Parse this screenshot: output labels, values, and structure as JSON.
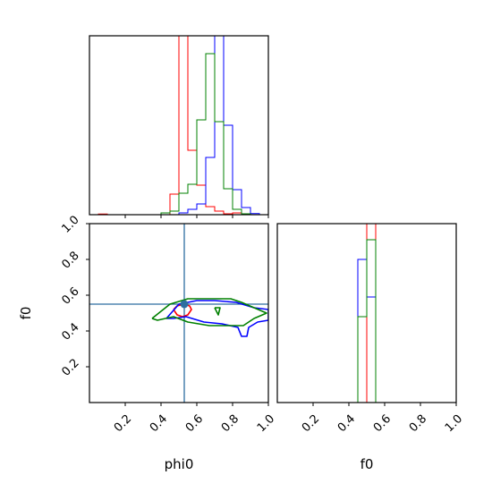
{
  "chart_data": [
    {
      "type": "histogram",
      "panel": "phi0 marginal",
      "xlabel": "",
      "xlim": [
        0,
        1
      ],
      "y_ticks_visible": false,
      "bin_width": 0.05,
      "bin_starts": [
        0.0,
        0.05,
        0.1,
        0.15,
        0.2,
        0.25,
        0.3,
        0.35,
        0.4,
        0.45,
        0.5,
        0.55,
        0.6,
        0.65,
        0.7,
        0.75,
        0.8,
        0.85,
        0.9,
        0.95
      ],
      "series": [
        {
          "color": "#ff0000",
          "values": [
            0,
            0.004,
            0,
            0,
            0,
            0,
            0,
            0,
            0,
            0.115,
            1.0,
            0.36,
            0.165,
            0.045,
            0.02,
            0.005,
            0.01,
            0,
            0,
            0
          ]
        },
        {
          "color": "#0000ff",
          "values": [
            0,
            0,
            0,
            0,
            0,
            0,
            0,
            0,
            0,
            0.0,
            0.01,
            0.03,
            0.06,
            0.32,
            1.0,
            0.5,
            0.14,
            0.04,
            0.006,
            0
          ]
        },
        {
          "color": "#008000",
          "values": [
            0,
            0,
            0,
            0,
            0,
            0,
            0,
            0,
            0.01,
            0.02,
            0.12,
            0.17,
            0.53,
            0.9,
            0.52,
            0.145,
            0.03,
            0.005,
            0,
            0
          ]
        }
      ]
    },
    {
      "type": "contour",
      "panel": "phi0 vs f0",
      "xlabel": "phi0",
      "ylabel": "f0",
      "xlim": [
        0,
        1
      ],
      "ylim": [
        0,
        1
      ],
      "x_ticks": [
        "0.2",
        "0.4",
        "0.6",
        "0.8",
        "1.0"
      ],
      "y_ticks": [
        "0.2",
        "0.4",
        "0.6",
        "0.8",
        "1.0"
      ],
      "truth": {
        "color": "#2e6ea0",
        "x": 0.53,
        "y": 0.55
      },
      "series": [
        {
          "color": "#ff0000",
          "points": [
            [
              0.47,
              0.52
            ],
            [
              0.49,
              0.54
            ],
            [
              0.53,
              0.55
            ],
            [
              0.56,
              0.54
            ],
            [
              0.57,
              0.52
            ],
            [
              0.55,
              0.49
            ],
            [
              0.52,
              0.48
            ],
            [
              0.49,
              0.49
            ],
            [
              0.47,
              0.52
            ]
          ]
        },
        {
          "color": "#0000ff",
          "points": [
            [
              0.43,
              0.47
            ],
            [
              0.5,
              0.55
            ],
            [
              0.6,
              0.57
            ],
            [
              0.7,
              0.57
            ],
            [
              0.82,
              0.56
            ],
            [
              0.92,
              0.53
            ],
            [
              1.0,
              0.52
            ],
            [
              1.0,
              0.46
            ],
            [
              0.94,
              0.45
            ],
            [
              0.89,
              0.42
            ],
            [
              0.88,
              0.37
            ],
            [
              0.85,
              0.37
            ],
            [
              0.83,
              0.42
            ],
            [
              0.74,
              0.44
            ],
            [
              0.64,
              0.45
            ],
            [
              0.54,
              0.48
            ],
            [
              0.47,
              0.47
            ],
            [
              0.43,
              0.47
            ]
          ]
        },
        {
          "color": "#008000",
          "points": [
            [
              0.35,
              0.47
            ],
            [
              0.4,
              0.51
            ],
            [
              0.45,
              0.55
            ],
            [
              0.55,
              0.58
            ],
            [
              0.67,
              0.58
            ],
            [
              0.79,
              0.58
            ],
            [
              0.85,
              0.56
            ],
            [
              0.92,
              0.53
            ],
            [
              0.99,
              0.5
            ],
            [
              0.92,
              0.47
            ],
            [
              0.86,
              0.43
            ],
            [
              0.78,
              0.43
            ],
            [
              0.67,
              0.43
            ],
            [
              0.55,
              0.45
            ],
            [
              0.47,
              0.48
            ],
            [
              0.38,
              0.46
            ],
            [
              0.35,
              0.47
            ]
          ]
        },
        {
          "color": "#008000",
          "points": [
            [
              0.7,
              0.53
            ],
            [
              0.73,
              0.53
            ],
            [
              0.72,
              0.49
            ],
            [
              0.7,
              0.53
            ]
          ]
        }
      ]
    },
    {
      "type": "histogram",
      "panel": "f0 marginal",
      "xlabel": "f0",
      "xlim": [
        0,
        1
      ],
      "x_ticks": [
        "0.2",
        "0.4",
        "0.6",
        "0.8",
        "1.0"
      ],
      "y_ticks_visible": false,
      "bin_width": 0.05,
      "bin_starts": [
        0.0,
        0.05,
        0.1,
        0.15,
        0.2,
        0.25,
        0.3,
        0.35,
        0.4,
        0.45,
        0.5,
        0.55,
        0.6,
        0.65,
        0.7,
        0.75,
        0.8,
        0.85,
        0.9,
        0.95
      ],
      "series": [
        {
          "color": "#ff0000",
          "values": [
            0,
            0,
            0,
            0,
            0,
            0,
            0,
            0,
            0,
            0,
            1.0,
            0,
            0,
            0,
            0,
            0,
            0,
            0,
            0,
            0
          ]
        },
        {
          "color": "#0000ff",
          "values": [
            0,
            0,
            0,
            0,
            0,
            0,
            0,
            0,
            0,
            0.8,
            0.59,
            0,
            0,
            0,
            0,
            0,
            0,
            0,
            0,
            0
          ]
        },
        {
          "color": "#008000",
          "values": [
            0,
            0,
            0,
            0,
            0,
            0,
            0,
            0,
            0,
            0.48,
            0.91,
            0,
            0,
            0,
            0,
            0,
            0,
            0,
            0,
            0
          ]
        }
      ]
    }
  ]
}
